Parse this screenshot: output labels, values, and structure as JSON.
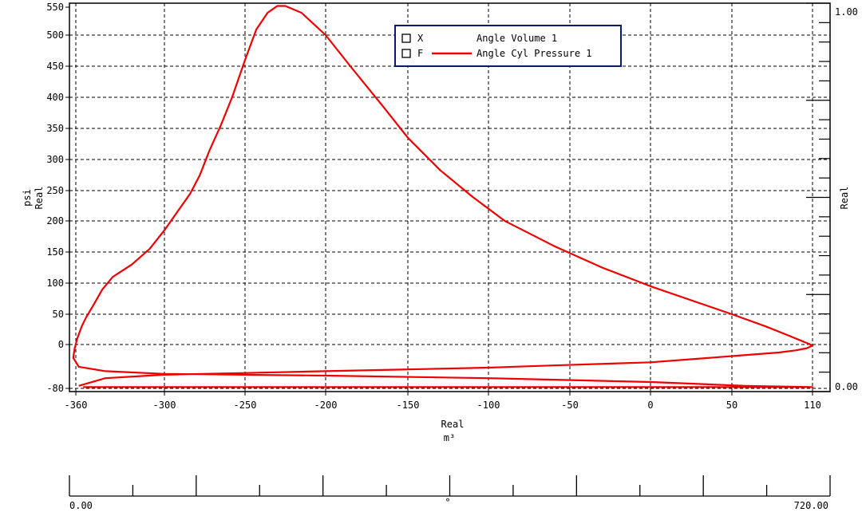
{
  "chart_data": {
    "type": "line",
    "y_axis": {
      "label_unit": "psi",
      "label": "Real",
      "ticks": [
        "550",
        "500",
        "450",
        "400",
        "350",
        "300",
        "250",
        "200",
        "150",
        "100",
        "50",
        "0",
        "-80"
      ],
      "ylim": [
        -80,
        555
      ]
    },
    "x_axis": {
      "label": "Real",
      "unit": "m³",
      "ticks": [
        "-360",
        "-300",
        "-250",
        "-200",
        "-150",
        "-100",
        "-50",
        "0",
        "50",
        "110"
      ],
      "xlim": [
        -365,
        110
      ]
    },
    "right_axis": {
      "label": "Real",
      "top_label": "1.00",
      "bottom_label": "0.00"
    },
    "secondary_x_axis": {
      "unit": "°",
      "min_label": "0.00",
      "max_label": "720.00"
    },
    "grid": true,
    "legend": {
      "position": "top-center",
      "entries": [
        {
          "key": "X",
          "name": "Angle Volume 1",
          "color": "none"
        },
        {
          "key": "F",
          "name": "Angle Cyl Pressure 1",
          "color": "#ee0000"
        }
      ]
    },
    "series": [
      {
        "name": "Angle Cyl Pressure 1",
        "color": "#ee0000",
        "points": [
          [
            -355,
            -79
          ],
          [
            -300,
            -79
          ],
          [
            -200,
            -79
          ],
          [
            -100,
            -79
          ],
          [
            0,
            -79
          ],
          [
            60,
            -79
          ],
          [
            110,
            -79
          ],
          [
            60,
            -78
          ],
          [
            0,
            -75
          ],
          [
            -100,
            -72
          ],
          [
            -200,
            -70
          ],
          [
            -300,
            -66
          ],
          [
            -340,
            -60
          ],
          [
            -358,
            -50
          ],
          [
            -362,
            -30
          ],
          [
            -361,
            -10
          ],
          [
            -359,
            10
          ],
          [
            -356,
            30
          ],
          [
            -353,
            45
          ],
          [
            -348,
            65
          ],
          [
            -342,
            90
          ],
          [
            -335,
            110
          ],
          [
            -322,
            130
          ],
          [
            -310,
            155
          ],
          [
            -300,
            185
          ],
          [
            -292,
            215
          ],
          [
            -284,
            245
          ],
          [
            -278,
            275
          ],
          [
            -272,
            315
          ],
          [
            -265,
            355
          ],
          [
            -258,
            400
          ],
          [
            -250,
            460
          ],
          [
            -243,
            510
          ],
          [
            -236,
            540
          ],
          [
            -230,
            553
          ],
          [
            -225,
            553
          ],
          [
            -215,
            540
          ],
          [
            -200,
            500
          ],
          [
            -185,
            450
          ],
          [
            -165,
            385
          ],
          [
            -150,
            335
          ],
          [
            -130,
            283
          ],
          [
            -110,
            240
          ],
          [
            -90,
            200
          ],
          [
            -60,
            160
          ],
          [
            -30,
            125
          ],
          [
            0,
            95
          ],
          [
            30,
            68
          ],
          [
            50,
            50
          ],
          [
            75,
            30
          ],
          [
            92,
            15
          ],
          [
            103,
            5
          ],
          [
            110,
            -2
          ],
          [
            106,
            -8
          ],
          [
            98,
            -13
          ],
          [
            85,
            -18
          ],
          [
            55,
            -25
          ],
          [
            0,
            -40
          ],
          [
            -60,
            -47
          ],
          [
            -100,
            -52
          ],
          [
            -150,
            -56
          ],
          [
            -200,
            -60
          ],
          [
            -250,
            -64
          ],
          [
            -300,
            -68
          ],
          [
            -340,
            -72
          ],
          [
            -358,
            -78
          ]
        ]
      }
    ]
  }
}
